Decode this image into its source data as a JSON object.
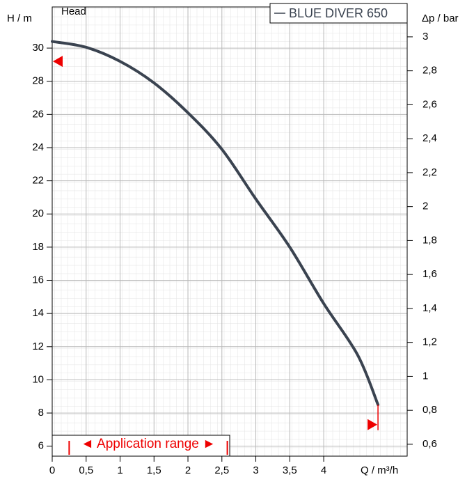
{
  "chart_data": {
    "type": "line",
    "corner_label": "Head",
    "x_label": "Q / m³/h",
    "y_label": "H / m",
    "y2_label": "Δp / bar",
    "xlim": [
      0,
      5.23
    ],
    "ylim": [
      5.4,
      32.48
    ],
    "y2lim": [
      0.53,
      3.176
    ],
    "xticks": [
      {
        "value": 0,
        "label": "0"
      },
      {
        "value": 0.5,
        "label": "0,5"
      },
      {
        "value": 1,
        "label": "1"
      },
      {
        "value": 1.5,
        "label": "1,5"
      },
      {
        "value": 2,
        "label": "2"
      },
      {
        "value": 2.5,
        "label": "2,5"
      },
      {
        "value": 3,
        "label": "3"
      },
      {
        "value": 3.5,
        "label": "3,5"
      },
      {
        "value": 4,
        "label": "4"
      }
    ],
    "yticks": [
      6,
      8,
      10,
      12,
      14,
      16,
      18,
      20,
      22,
      24,
      26,
      28,
      30
    ],
    "y2ticks": [
      {
        "value": 0.6,
        "label": "0,6"
      },
      {
        "value": 0.8,
        "label": "0,8"
      },
      1,
      {
        "value": 1.2,
        "label": "1,2"
      },
      {
        "value": 1.4,
        "label": "1,4"
      },
      {
        "value": 1.6,
        "label": "1,6"
      },
      {
        "value": 1.8,
        "label": "1,8"
      },
      2,
      {
        "value": 2.2,
        "label": "2,2"
      },
      {
        "value": 2.4,
        "label": "2,4"
      },
      {
        "value": 2.6,
        "label": "2,6"
      },
      {
        "value": 2.8,
        "label": "2,8"
      },
      3
    ],
    "grid": true,
    "legend": "upper right",
    "series": [
      {
        "name": "BLUE DIVER 650",
        "color": "#3a4350",
        "x": [
          0,
          0.5,
          1,
          1.5,
          2,
          2.5,
          3,
          3.5,
          4,
          4.5,
          4.8
        ],
        "values": [
          30.4,
          30.05,
          29.2,
          27.9,
          26.1,
          23.9,
          20.9,
          18.0,
          14.6,
          11.5,
          8.5
        ]
      }
    ],
    "markers": [
      {
        "x": 0,
        "y": 29.2
      },
      {
        "x": 4.8,
        "y": 7.3
      }
    ],
    "application_range": {
      "label": "◄ Application range ►",
      "start": 0.25,
      "end": 2.58,
      "color": "#ee0000"
    }
  }
}
